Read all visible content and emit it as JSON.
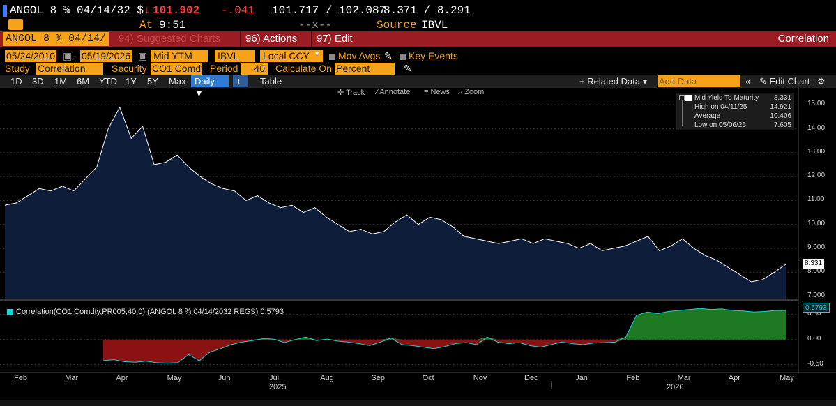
{
  "quote": {
    "ticker": "ANGOL 8 ¾ 04/14/32 $",
    "arrow": "↓",
    "price": "101.902",
    "change": "-.041",
    "bid_ask": "101.717 / 102.087",
    "yields": "8.371 / 8.291",
    "at_label": "At",
    "time": "9:51",
    "placeholder": "--x--",
    "source_label": "Source",
    "source": "IBVL"
  },
  "header": {
    "security": "ANGOL 8 ¾ 04/14/",
    "suggested_charts": "94) Suggested Charts",
    "actions": "96) Actions",
    "edit": "97) Edit",
    "title": "Correlation"
  },
  "controls": {
    "start_date": "05/24/2010",
    "end_date": "05/19/2026",
    "field": "Mid YTM",
    "source": "IBVL",
    "currency": "Local CCY",
    "mov_avgs": "Mov Avgs",
    "key_events": "Key Events",
    "study_label": "Study",
    "study": "Correlation",
    "security_label": "Security",
    "security": "CO1 Comdt",
    "period_label": "Period",
    "period": "40",
    "calc_label": "Calculate On",
    "calc": "Percent"
  },
  "tabs": {
    "ranges": [
      "1D",
      "3D",
      "1M",
      "6M",
      "YTD",
      "1Y",
      "5Y",
      "Max"
    ],
    "frequency": "Daily ▼",
    "table": "Table",
    "related": "+ Related Data ▾",
    "add_data_placeholder": "Add Data",
    "edit_chart": "Edit Chart"
  },
  "mini_toolbar": {
    "track": "Track",
    "annotate": "Annotate",
    "news": "News",
    "zoom": "Zoom"
  },
  "legend": {
    "series_name": "Mid Yield To Maturity",
    "last": "8.331",
    "high_label": "High on 04/11/25",
    "high": "14.921",
    "avg_label": "Average",
    "avg": "10.406",
    "low_label": "Low on 05/06/26",
    "low": "7.605"
  },
  "corr_legend": "Correlation(CO1 Comdty,PR005,40,0) (ANGOL 8 ¾ 04/14/2032 REGS) 0.5793",
  "price_tags": {
    "ytm": "8.331",
    "corr": "0.5793"
  },
  "colors": {
    "area_fill": "#0e1e3a",
    "line": "#ffffff",
    "pos_fill": "#1e7a22",
    "neg_fill": "#8a1212",
    "corr_line": "#19d3d3",
    "amber": "#f7a21b",
    "header_red": "#9b1c22"
  },
  "chart_data": [
    {
      "type": "area",
      "title": "Mid Yield To Maturity",
      "x": [
        "2025-02-01",
        "2025-02-08",
        "2025-02-15",
        "2025-02-22",
        "2025-03-01",
        "2025-03-08",
        "2025-03-15",
        "2025-03-22",
        "2025-03-29",
        "2025-04-05",
        "2025-04-11",
        "2025-04-19",
        "2025-04-26",
        "2025-05-03",
        "2025-05-10",
        "2025-05-17",
        "2025-05-24",
        "2025-05-31",
        "2025-06-07",
        "2025-06-14",
        "2025-06-21",
        "2025-06-28",
        "2025-07-05",
        "2025-07-12",
        "2025-07-19",
        "2025-07-26",
        "2025-08-02",
        "2025-08-09",
        "2025-08-16",
        "2025-08-23",
        "2025-08-30",
        "2025-09-06",
        "2025-09-13",
        "2025-09-20",
        "2025-09-27",
        "2025-10-04",
        "2025-10-11",
        "2025-10-18",
        "2025-10-25",
        "2025-11-01",
        "2025-11-08",
        "2025-11-15",
        "2025-11-22",
        "2025-11-29",
        "2025-12-06",
        "2025-12-13",
        "2025-12-20",
        "2025-12-27",
        "2026-01-03",
        "2026-01-10",
        "2026-01-17",
        "2026-01-24",
        "2026-01-31",
        "2026-02-07",
        "2026-02-14",
        "2026-02-21",
        "2026-02-28",
        "2026-03-07",
        "2026-03-14",
        "2026-03-21",
        "2026-03-28",
        "2026-04-04",
        "2026-04-11",
        "2026-04-18",
        "2026-04-25",
        "2026-05-02",
        "2026-05-06",
        "2026-05-12",
        "2026-05-19"
      ],
      "values": [
        10.8,
        10.9,
        11.2,
        11.5,
        11.4,
        11.6,
        11.4,
        11.9,
        12.4,
        14.0,
        14.9,
        13.6,
        14.1,
        12.5,
        12.6,
        12.9,
        12.4,
        12.0,
        11.7,
        11.5,
        11.4,
        11.0,
        11.2,
        10.9,
        10.7,
        10.8,
        10.5,
        10.7,
        10.3,
        10.0,
        9.7,
        9.8,
        9.6,
        9.7,
        10.1,
        10.4,
        10.0,
        10.3,
        10.2,
        9.9,
        9.5,
        9.4,
        9.3,
        9.2,
        9.3,
        9.4,
        9.2,
        9.4,
        9.3,
        9.2,
        9.0,
        9.2,
        8.9,
        9.0,
        9.1,
        9.3,
        9.5,
        8.9,
        9.1,
        9.4,
        9.0,
        8.7,
        8.5,
        8.2,
        7.9,
        7.6,
        7.7,
        8.0,
        8.331
      ],
      "ylim": [
        6.9,
        15.3
      ],
      "yticks": [
        "7.000",
        "8.000",
        "9.000",
        "10.00",
        "11.00",
        "12.00",
        "13.00",
        "14.00",
        "15.00"
      ],
      "yticks_values": [
        7,
        8,
        9,
        10,
        11,
        12,
        13,
        14,
        15
      ]
    },
    {
      "type": "area",
      "title": "Correlation(CO1 Comdty,PR005,40,0) (ANGOL 8 ¾ 04/14/2032 REGS)",
      "x_start": "2025-04-01",
      "values": [
        -0.42,
        -0.4,
        -0.44,
        -0.45,
        -0.43,
        -0.46,
        -0.47,
        -0.46,
        -0.3,
        -0.42,
        -0.25,
        -0.18,
        -0.1,
        -0.05,
        -0.02,
        0.02,
        0.01,
        -0.06,
        0.0,
        0.05,
        -0.02,
        0.01,
        -0.03,
        -0.05,
        -0.08,
        -0.12,
        -0.05,
        0.03,
        -0.1,
        -0.12,
        -0.15,
        -0.18,
        -0.14,
        -0.08,
        -0.06,
        -0.1,
        0.05,
        -0.05,
        -0.08,
        -0.06,
        -0.12,
        -0.15,
        -0.1,
        -0.05,
        -0.08,
        -0.1,
        -0.07,
        -0.06,
        -0.05,
        0.05,
        0.48,
        0.55,
        0.52,
        0.56,
        0.58,
        0.6,
        0.62,
        0.6,
        0.61,
        0.58,
        0.57,
        0.55,
        0.56,
        0.58,
        0.5793
      ],
      "ylim": [
        -0.6,
        0.65
      ],
      "yticks": [
        "-0.50",
        "0.00",
        "0.50"
      ],
      "yticks_values": [
        -0.5,
        0.0,
        0.5
      ]
    }
  ],
  "x_axis": {
    "months": [
      "Feb",
      "Mar",
      "Apr",
      "May",
      "Jun",
      "Jul",
      "Aug",
      "Sep",
      "Oct",
      "Nov",
      "Dec",
      "Jan",
      "Feb",
      "Mar",
      "Apr",
      "May"
    ],
    "years": [
      "2025",
      "2026"
    ]
  }
}
